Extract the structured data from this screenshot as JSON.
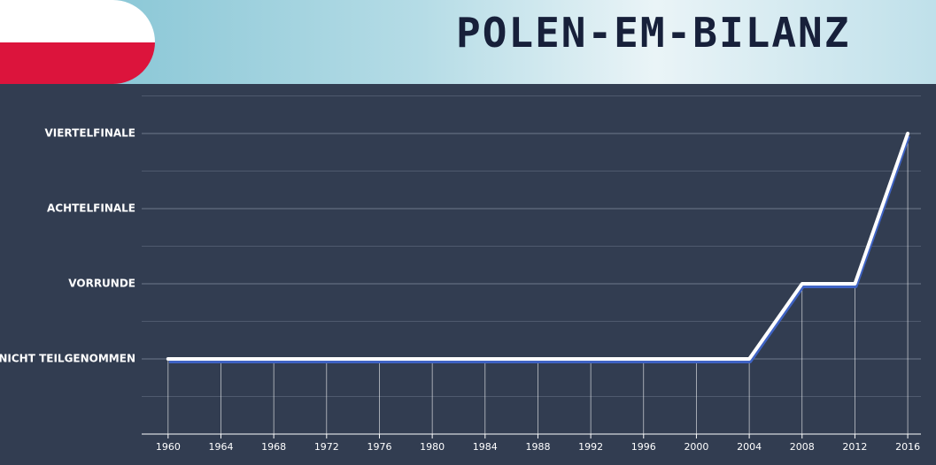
{
  "chart_data": {
    "type": "line",
    "title": "POLEN-EM-BILANZ",
    "x": [
      1960,
      1964,
      1968,
      1972,
      1976,
      1980,
      1984,
      1988,
      1992,
      1996,
      2000,
      2004,
      2008,
      2012,
      2016
    ],
    "xlim": [
      1958,
      2017
    ],
    "xticks": [
      1960,
      1964,
      1968,
      1972,
      1976,
      1980,
      1984,
      1988,
      1992,
      1996,
      2000,
      2004,
      2008,
      2012,
      2016
    ],
    "series": [
      {
        "color": "#ffffff",
        "values": [
          0,
          0,
          0,
          0,
          0,
          0,
          0,
          0,
          0,
          0,
          0,
          0,
          1,
          1,
          3
        ]
      }
    ],
    "ylim": [
      -1,
      3.5
    ],
    "yticks": [
      {
        "value": 0,
        "label": "NICHT TEILGENOMMEN"
      },
      {
        "value": 1,
        "label": "VORRUNDE"
      },
      {
        "value": 2,
        "label": "ACHTELFINALE"
      },
      {
        "value": 3,
        "label": "VIERTELFINALE"
      }
    ],
    "grid": true
  }
}
